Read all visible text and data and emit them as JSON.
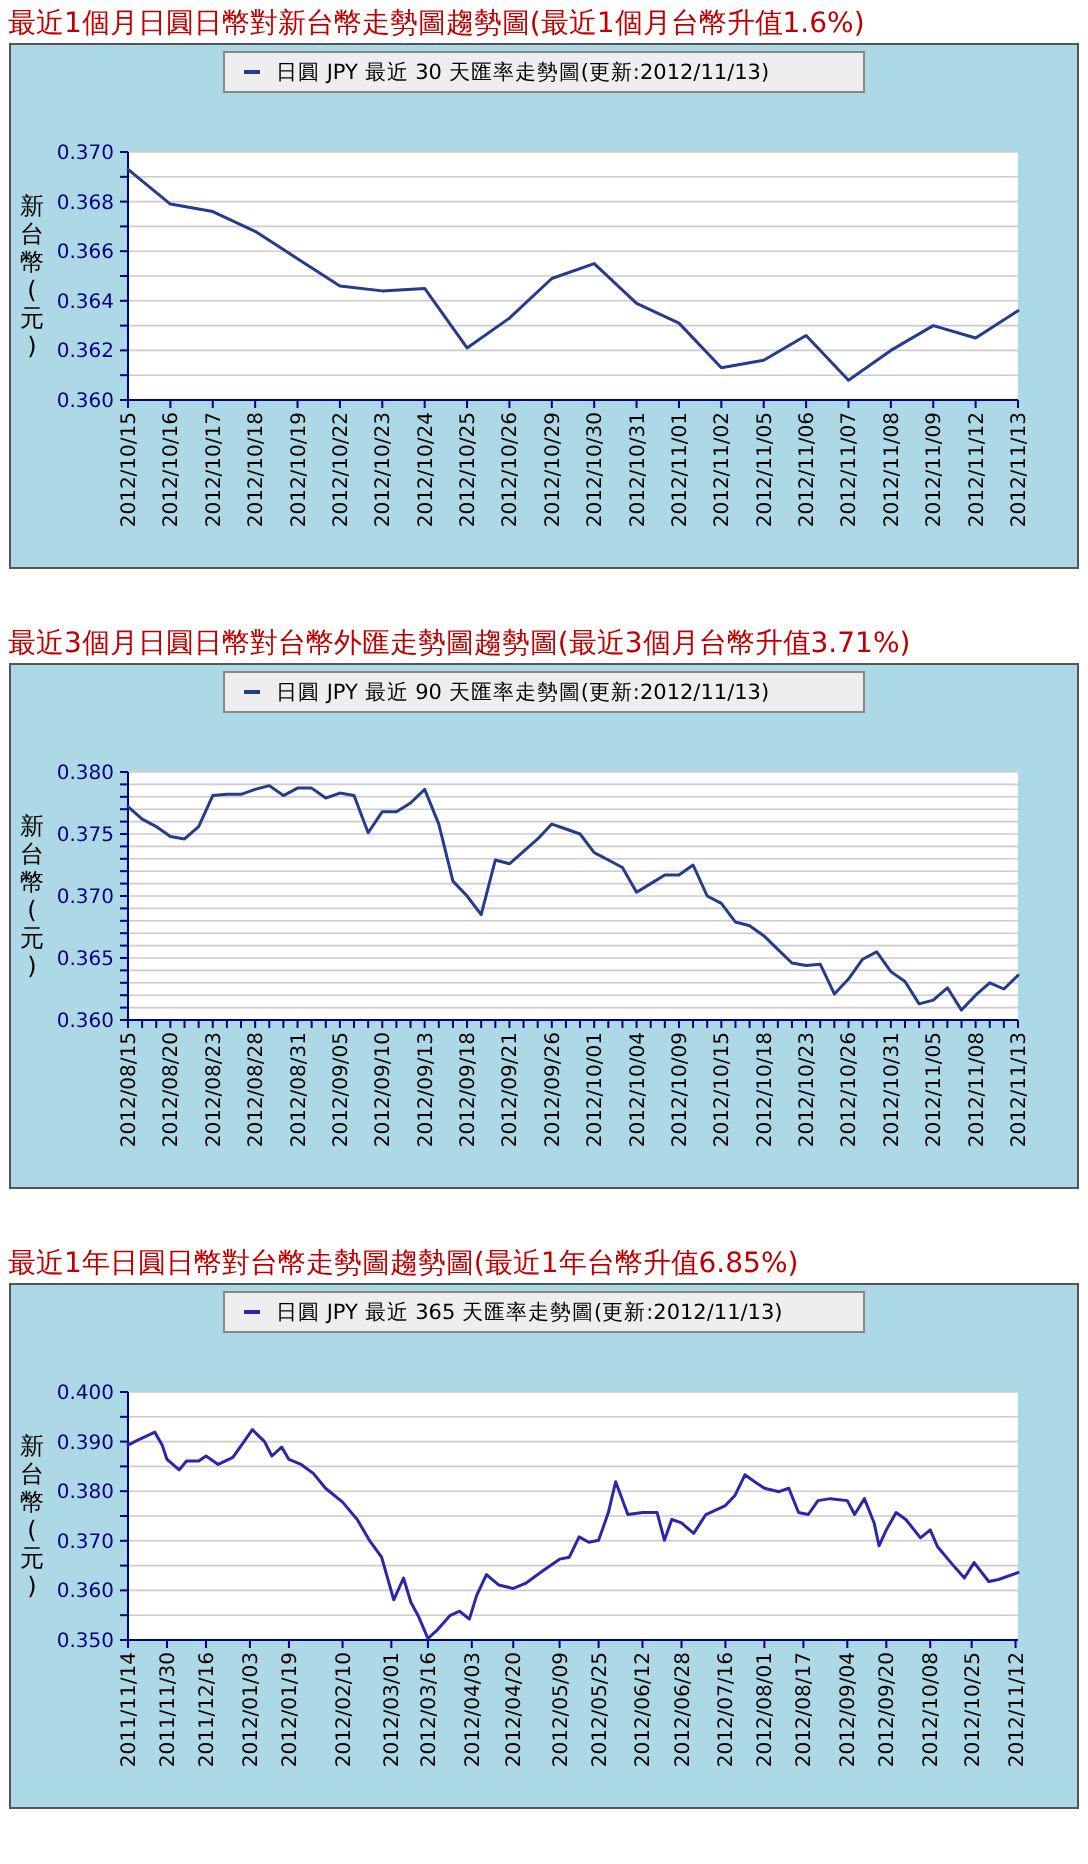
{
  "chart_data": [
    {
      "type": "line",
      "title": "最近1個月日圓日幣對新台幣走勢圖趨勢圖(最近1個月台幣升值1.6%)",
      "ylabel": "新台幣(元)",
      "legend": "top",
      "grid": "y",
      "categories": [
        "2012/10/15",
        "2012/10/16",
        "2012/10/17",
        "2012/10/18",
        "2012/10/19",
        "2012/10/22",
        "2012/10/23",
        "2012/10/24",
        "2012/10/25",
        "2012/10/26",
        "2012/10/29",
        "2012/10/30",
        "2012/10/31",
        "2012/11/01",
        "2012/11/02",
        "2012/11/05",
        "2012/11/06",
        "2012/11/07",
        "2012/11/08",
        "2012/11/09",
        "2012/11/12",
        "2012/11/13"
      ],
      "series": [
        {
          "name": "日圓 JPY 最近 30 天匯率走勢圖(更新:2012/11/13)",
          "color": "#243c8c",
          "values": [
            0.3693,
            0.3679,
            0.3676,
            0.3668,
            0.3657,
            0.3646,
            0.3644,
            0.3645,
            0.3621,
            0.3633,
            0.3649,
            0.3655,
            0.3639,
            0.3631,
            0.3613,
            0.3616,
            0.3626,
            0.3608,
            0.362,
            0.363,
            0.3625,
            0.3636
          ]
        }
      ],
      "ylim": [
        0.36,
        0.37
      ],
      "yticks": [
        {
          "value": 0.36,
          "label": "0.360"
        },
        {
          "value": 0.361,
          "label": null
        },
        {
          "value": 0.362,
          "label": "0.362"
        },
        {
          "value": 0.363,
          "label": null
        },
        {
          "value": 0.364,
          "label": "0.364"
        },
        {
          "value": 0.365,
          "label": null
        },
        {
          "value": 0.366,
          "label": "0.366"
        },
        {
          "value": 0.367,
          "label": null
        },
        {
          "value": 0.368,
          "label": "0.368"
        },
        {
          "value": 0.369,
          "label": null
        },
        {
          "value": 0.37,
          "label": "0.370"
        }
      ]
    },
    {
      "type": "line",
      "title": "最近3個月日圓日幣對台幣外匯走勢圖趨勢圖(最近3個月台幣升值3.71%)",
      "ylabel": "新台幣(元)",
      "legend": "top",
      "grid": "y",
      "categories": [
        "2012/08/15",
        null,
        null,
        "2012/08/20",
        null,
        null,
        "2012/08/23",
        null,
        null,
        "2012/08/28",
        null,
        null,
        "2012/08/31",
        null,
        null,
        "2012/09/05",
        null,
        null,
        "2012/09/10",
        null,
        null,
        "2012/09/13",
        null,
        null,
        "2012/09/18",
        null,
        null,
        "2012/09/21",
        null,
        null,
        "2012/09/26",
        null,
        null,
        "2012/10/01",
        null,
        null,
        "2012/10/04",
        null,
        null,
        "2012/10/09",
        null,
        null,
        "2012/10/15",
        null,
        null,
        "2012/10/18",
        null,
        null,
        "2012/10/23",
        null,
        null,
        "2012/10/26",
        null,
        null,
        "2012/10/31",
        null,
        null,
        "2012/11/05",
        null,
        null,
        "2012/11/08",
        null,
        null,
        "2012/11/13"
      ],
      "series": [
        {
          "name": "日圓 JPY 最近 90 天匯率走勢圖(更新:2012/11/13)",
          "color": "#243c8c",
          "values": [
            0.3772,
            0.3762,
            0.3756,
            0.3748,
            0.3746,
            0.3756,
            0.3781,
            0.3782,
            0.3782,
            0.3786,
            0.3789,
            0.3781,
            0.3787,
            0.3787,
            0.3779,
            0.3783,
            0.3781,
            0.3751,
            0.3768,
            0.3768,
            0.3775,
            0.3786,
            0.3758,
            0.3712,
            0.37,
            0.3685,
            0.3729,
            0.3726,
            0.3736,
            0.3746,
            0.3758,
            0.3754,
            0.375,
            0.3735,
            0.3729,
            0.3723,
            0.3703,
            0.371,
            0.3717,
            0.3717,
            0.3725,
            0.37,
            0.3694,
            0.3679,
            0.3676,
            0.3668,
            0.3657,
            0.3646,
            0.3644,
            0.3645,
            0.3621,
            0.3633,
            0.3649,
            0.3655,
            0.3639,
            0.3631,
            0.3613,
            0.3616,
            0.3626,
            0.3608,
            0.362,
            0.363,
            0.3625,
            0.3636
          ]
        }
      ],
      "ylim": [
        0.36,
        0.38
      ],
      "yticks": [
        {
          "value": 0.36,
          "label": "0.360"
        },
        {
          "value": 0.361,
          "label": null
        },
        {
          "value": 0.362,
          "label": null
        },
        {
          "value": 0.363,
          "label": null
        },
        {
          "value": 0.364,
          "label": null
        },
        {
          "value": 0.365,
          "label": "0.365"
        },
        {
          "value": 0.366,
          "label": null
        },
        {
          "value": 0.367,
          "label": null
        },
        {
          "value": 0.368,
          "label": null
        },
        {
          "value": 0.369,
          "label": null
        },
        {
          "value": 0.37,
          "label": "0.370"
        },
        {
          "value": 0.371,
          "label": null
        },
        {
          "value": 0.372,
          "label": null
        },
        {
          "value": 0.373,
          "label": null
        },
        {
          "value": 0.374,
          "label": null
        },
        {
          "value": 0.375,
          "label": "0.375"
        },
        {
          "value": 0.376,
          "label": null
        },
        {
          "value": 0.377,
          "label": null
        },
        {
          "value": 0.378,
          "label": null
        },
        {
          "value": 0.379,
          "label": null
        },
        {
          "value": 0.38,
          "label": "0.380"
        }
      ]
    },
    {
      "type": "line",
      "title": "最近1年日圓日幣對台幣走勢圖趨勢圖(最近1年台幣升值6.85%)",
      "ylabel": "新台幣(元)",
      "legend": "top",
      "grid": "y",
      "series": [
        {
          "name": "日圓 JPY 最近 365 天匯率走勢圖(更新:2012/11/13)",
          "color": "#2828a8",
          "x": [
            "2011-11-14",
            "2011-11-18",
            "2011-11-22",
            "2011-11-25",
            "2011-11-28",
            "2011-11-30",
            "2011-12-05",
            "2011-12-08",
            "2011-12-13",
            "2011-12-16",
            "2011-12-21",
            "2011-12-27",
            "2011-12-30",
            "2012-01-04",
            "2012-01-09",
            "2012-01-12",
            "2012-01-16",
            "2012-01-19",
            "2012-01-24",
            "2012-01-29",
            "2012-02-03",
            "2012-02-10",
            "2012-02-16",
            "2012-02-21",
            "2012-02-26",
            "2012-03-02",
            "2012-03-06",
            "2012-03-09",
            "2012-03-12",
            "2012-03-16",
            "2012-03-20",
            "2012-03-25",
            "2012-03-29",
            "2012-04-02",
            "2012-04-05",
            "2012-04-09",
            "2012-04-14",
            "2012-04-20",
            "2012-04-25",
            "2012-05-02",
            "2012-05-09",
            "2012-05-13",
            "2012-05-17",
            "2012-05-21",
            "2012-05-25",
            "2012-05-29",
            "2012-06-01",
            "2012-06-06",
            "2012-06-12",
            "2012-06-18",
            "2012-06-21",
            "2012-06-24",
            "2012-06-28",
            "2012-07-03",
            "2012-07-08",
            "2012-07-16",
            "2012-07-20",
            "2012-07-24",
            "2012-07-28",
            "2012-08-01",
            "2012-08-07",
            "2012-08-11",
            "2012-08-15",
            "2012-08-19",
            "2012-08-23",
            "2012-08-28",
            "2012-09-04",
            "2012-09-07",
            "2012-09-11",
            "2012-09-15",
            "2012-09-17",
            "2012-09-20",
            "2012-09-24",
            "2012-09-28",
            "2012-10-04",
            "2012-10-08",
            "2012-10-11",
            "2012-10-17",
            "2012-10-22",
            "2012-10-26",
            "2012-11-01",
            "2012-11-05",
            "2012-11-13"
          ],
          "values": [
            0.3893,
            0.3903,
            0.3912,
            0.3919,
            0.3893,
            0.3864,
            0.3843,
            0.3861,
            0.3861,
            0.3871,
            0.3854,
            0.3868,
            0.3889,
            0.3924,
            0.39,
            0.3871,
            0.3889,
            0.3864,
            0.3854,
            0.3836,
            0.3806,
            0.3778,
            0.3743,
            0.3701,
            0.3667,
            0.3581,
            0.3625,
            0.3576,
            0.3549,
            0.3503,
            0.3521,
            0.3549,
            0.3558,
            0.3542,
            0.359,
            0.3632,
            0.3611,
            0.3604,
            0.3614,
            0.3639,
            0.3663,
            0.3667,
            0.3708,
            0.3697,
            0.3701,
            0.3757,
            0.3819,
            0.3753,
            0.3757,
            0.3757,
            0.3701,
            0.3743,
            0.3736,
            0.3715,
            0.3753,
            0.3771,
            0.3792,
            0.3833,
            0.3819,
            0.3806,
            0.3799,
            0.3806,
            0.3757,
            0.3753,
            0.3781,
            0.3785,
            0.3781,
            0.3753,
            0.3785,
            0.3736,
            0.369,
            0.3722,
            0.3757,
            0.3743,
            0.3706,
            0.3722,
            0.3688,
            0.3653,
            0.3625,
            0.3656,
            0.3618,
            0.3622,
            0.3636
          ]
        }
      ],
      "xlim": [
        "2011-11-14",
        "2012-11-13"
      ],
      "xticks": [
        {
          "value": "2011-11-14",
          "label": "2011/11/14"
        },
        {
          "value": "2011-11-30",
          "label": "2011/11/30"
        },
        {
          "value": "2011-12-16",
          "label": "2011/12/16"
        },
        {
          "value": "2012-01-03",
          "label": "2012/01/03"
        },
        {
          "value": "2012-01-19",
          "label": "2012/01/19"
        },
        {
          "value": "2012-02-10",
          "label": "2012/02/10"
        },
        {
          "value": "2012-03-01",
          "label": "2012/03/01"
        },
        {
          "value": "2012-03-16",
          "label": "2012/03/16"
        },
        {
          "value": "2012-04-03",
          "label": "2012/04/03"
        },
        {
          "value": "2012-04-20",
          "label": "2012/04/20"
        },
        {
          "value": "2012-05-09",
          "label": "2012/05/09"
        },
        {
          "value": "2012-05-25",
          "label": "2012/05/25"
        },
        {
          "value": "2012-06-12",
          "label": "2012/06/12"
        },
        {
          "value": "2012-06-28",
          "label": "2012/06/28"
        },
        {
          "value": "2012-07-16",
          "label": "2012/07/16"
        },
        {
          "value": "2012-08-01",
          "label": "2012/08/01"
        },
        {
          "value": "2012-08-17",
          "label": "2012/08/17"
        },
        {
          "value": "2012-09-04",
          "label": "2012/09/04"
        },
        {
          "value": "2012-09-20",
          "label": "2012/09/20"
        },
        {
          "value": "2012-10-08",
          "label": "2012/10/08"
        },
        {
          "value": "2012-10-25",
          "label": "2012/10/25"
        },
        {
          "value": "2012-11-12",
          "label": "2012/11/12"
        }
      ],
      "ylim": [
        0.35,
        0.4
      ],
      "yticks": [
        {
          "value": 0.35,
          "label": "0.350"
        },
        {
          "value": 0.355,
          "label": null
        },
        {
          "value": 0.36,
          "label": "0.360"
        },
        {
          "value": 0.365,
          "label": null
        },
        {
          "value": 0.37,
          "label": "0.370"
        },
        {
          "value": 0.375,
          "label": null
        },
        {
          "value": 0.38,
          "label": "0.380"
        },
        {
          "value": 0.385,
          "label": null
        },
        {
          "value": 0.39,
          "label": "0.390"
        },
        {
          "value": 0.395,
          "label": null
        },
        {
          "value": 0.4,
          "label": "0.400"
        }
      ]
    }
  ]
}
